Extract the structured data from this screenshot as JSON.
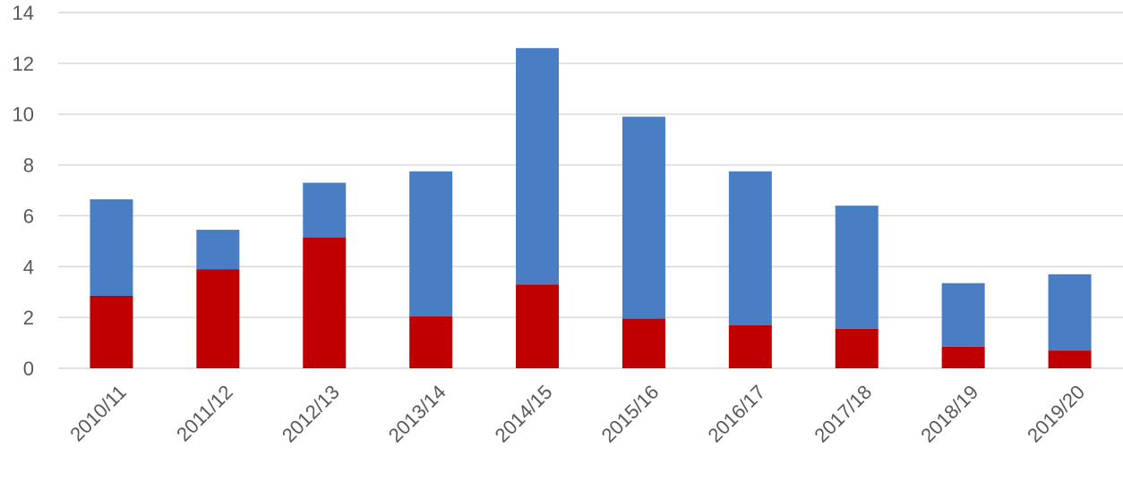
{
  "chart_data": {
    "type": "bar",
    "stacked": true,
    "categories": [
      "2010/11",
      "2011/12",
      "2012/13",
      "2013/14",
      "2014/15",
      "2015/16",
      "2016/17",
      "2017/18",
      "2018/19",
      "2019/20"
    ],
    "series": [
      {
        "color": "#c00000",
        "values": [
          2.85,
          3.9,
          5.15,
          2.05,
          3.3,
          1.95,
          1.7,
          1.55,
          0.85,
          0.7
        ]
      },
      {
        "color": "#4a7ec4",
        "values": [
          3.8,
          1.55,
          2.15,
          5.7,
          9.3,
          7.95,
          6.05,
          4.85,
          2.5,
          3.0
        ]
      }
    ],
    "yticks": [
      "0",
      "2",
      "4",
      "6",
      "8",
      "10",
      "12",
      "14"
    ],
    "ylim": [
      0,
      14
    ],
    "grid": true,
    "legend": "none",
    "title": "",
    "xlabel": "",
    "ylabel": ""
  }
}
